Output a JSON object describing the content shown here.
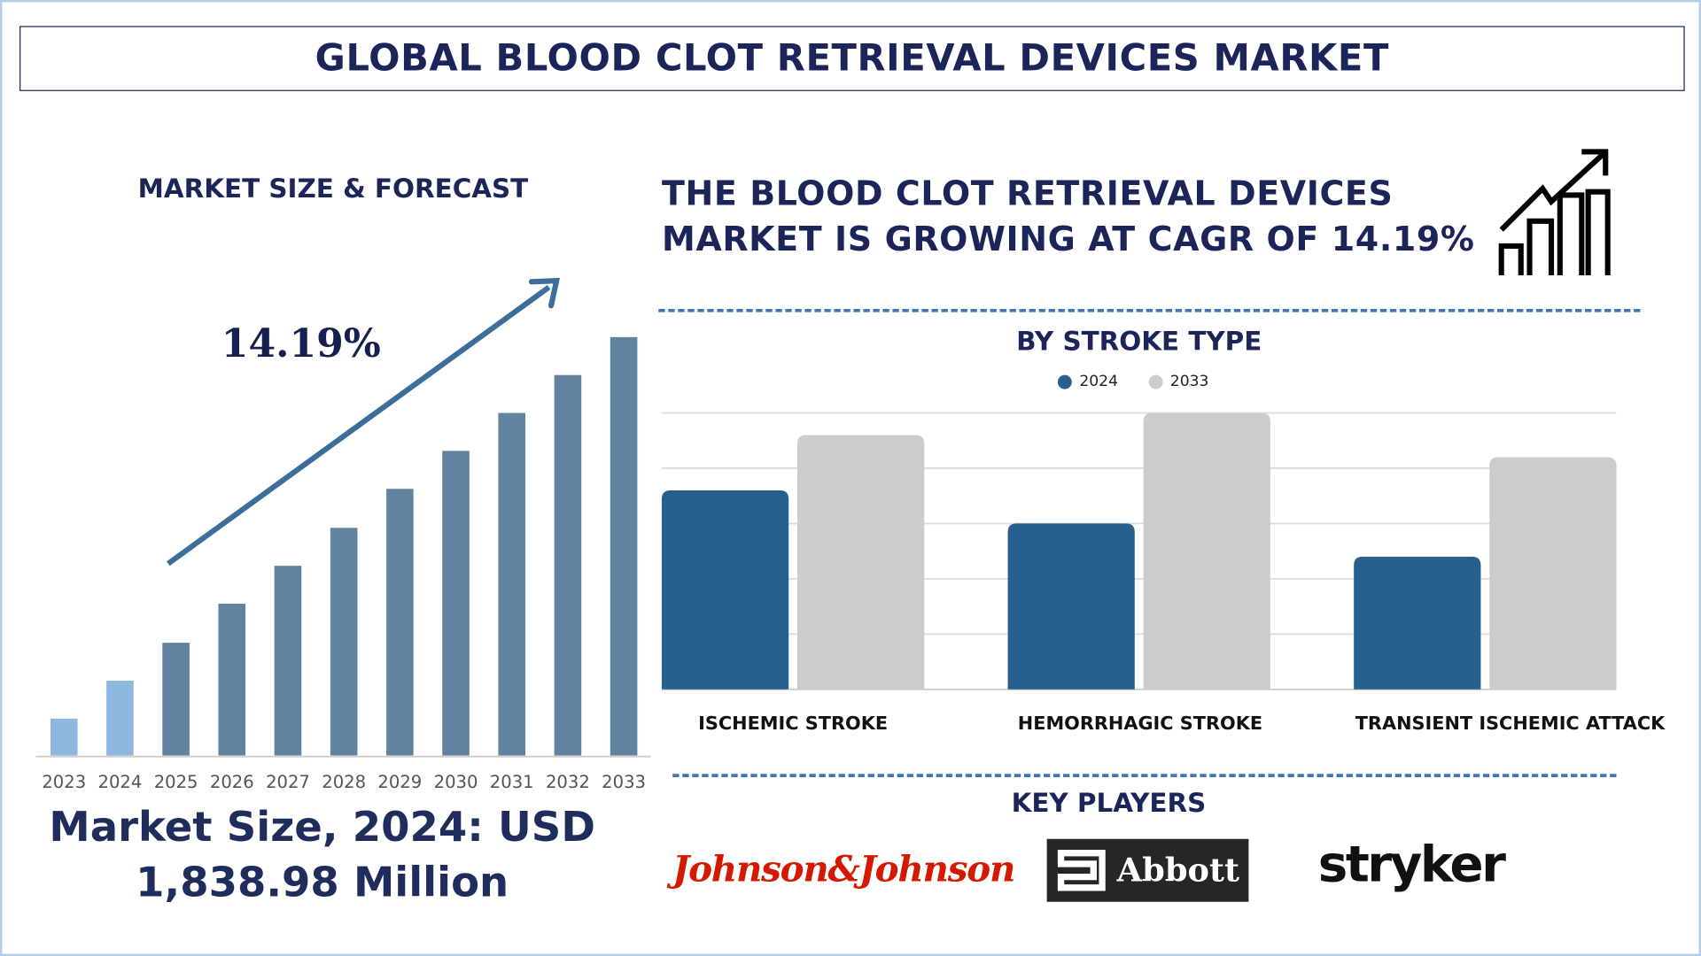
{
  "title": "GLOBAL BLOOD CLOT RETRIEVAL DEVICES MARKET",
  "left_panel": {
    "heading": "MARKET SIZE & FORECAST",
    "cagr_label": "14.19%",
    "market_size_line1": "Market Size, 2024: USD",
    "market_size_line2": "1,838.98 Million"
  },
  "right_panel": {
    "headline_line1": "THE BLOOD CLOT RETRIEVAL DEVICES",
    "headline_line2": "MARKET IS GROWING AT CAGR OF 14.19%",
    "icon": "growth-chart-arrow-icon",
    "segment_heading": "BY STROKE TYPE",
    "key_players_heading": "KEY PLAYERS",
    "key_players": [
      "Johnson&Johnson",
      "Abbott",
      "stryker"
    ]
  },
  "colors": {
    "navy": "#1b2559",
    "bar_2024": "#27608f",
    "bar_2033": "#cccccc",
    "forecast_bar": "#6283a0",
    "historic_bar": "#8fb8e0",
    "arrow": "#3d6e9a",
    "jj_red": "#d51900"
  },
  "chart_data": [
    {
      "type": "bar",
      "title": "MARKET SIZE & FORECAST",
      "categories": [
        "2023",
        "2024",
        "2025",
        "2026",
        "2027",
        "2028",
        "2029",
        "2030",
        "2031",
        "2032",
        "2033"
      ],
      "values": [
        906,
        1839,
        2772,
        3731,
        4664,
        5597,
        6556,
        7489,
        8422,
        9354,
        10287
      ],
      "highlighted_categories": [
        "2023",
        "2024"
      ],
      "annotation": "14.19%",
      "grid": false,
      "xlabel": "",
      "ylabel": ""
    },
    {
      "type": "bar",
      "title": "BY STROKE TYPE",
      "categories": [
        "ISCHEMIC STROKE",
        "HEMORRHAGIC STROKE",
        "TRANSIENT ISCHEMIC ATTACK"
      ],
      "series": [
        {
          "name": "2024",
          "values": [
            3.6,
            3.0,
            2.4
          ]
        },
        {
          "name": "2033",
          "values": [
            4.6,
            5.0,
            4.2
          ]
        }
      ],
      "ylim": [
        0,
        5
      ],
      "grid": true,
      "legend": "top-center",
      "xlabel": "",
      "ylabel": ""
    }
  ]
}
